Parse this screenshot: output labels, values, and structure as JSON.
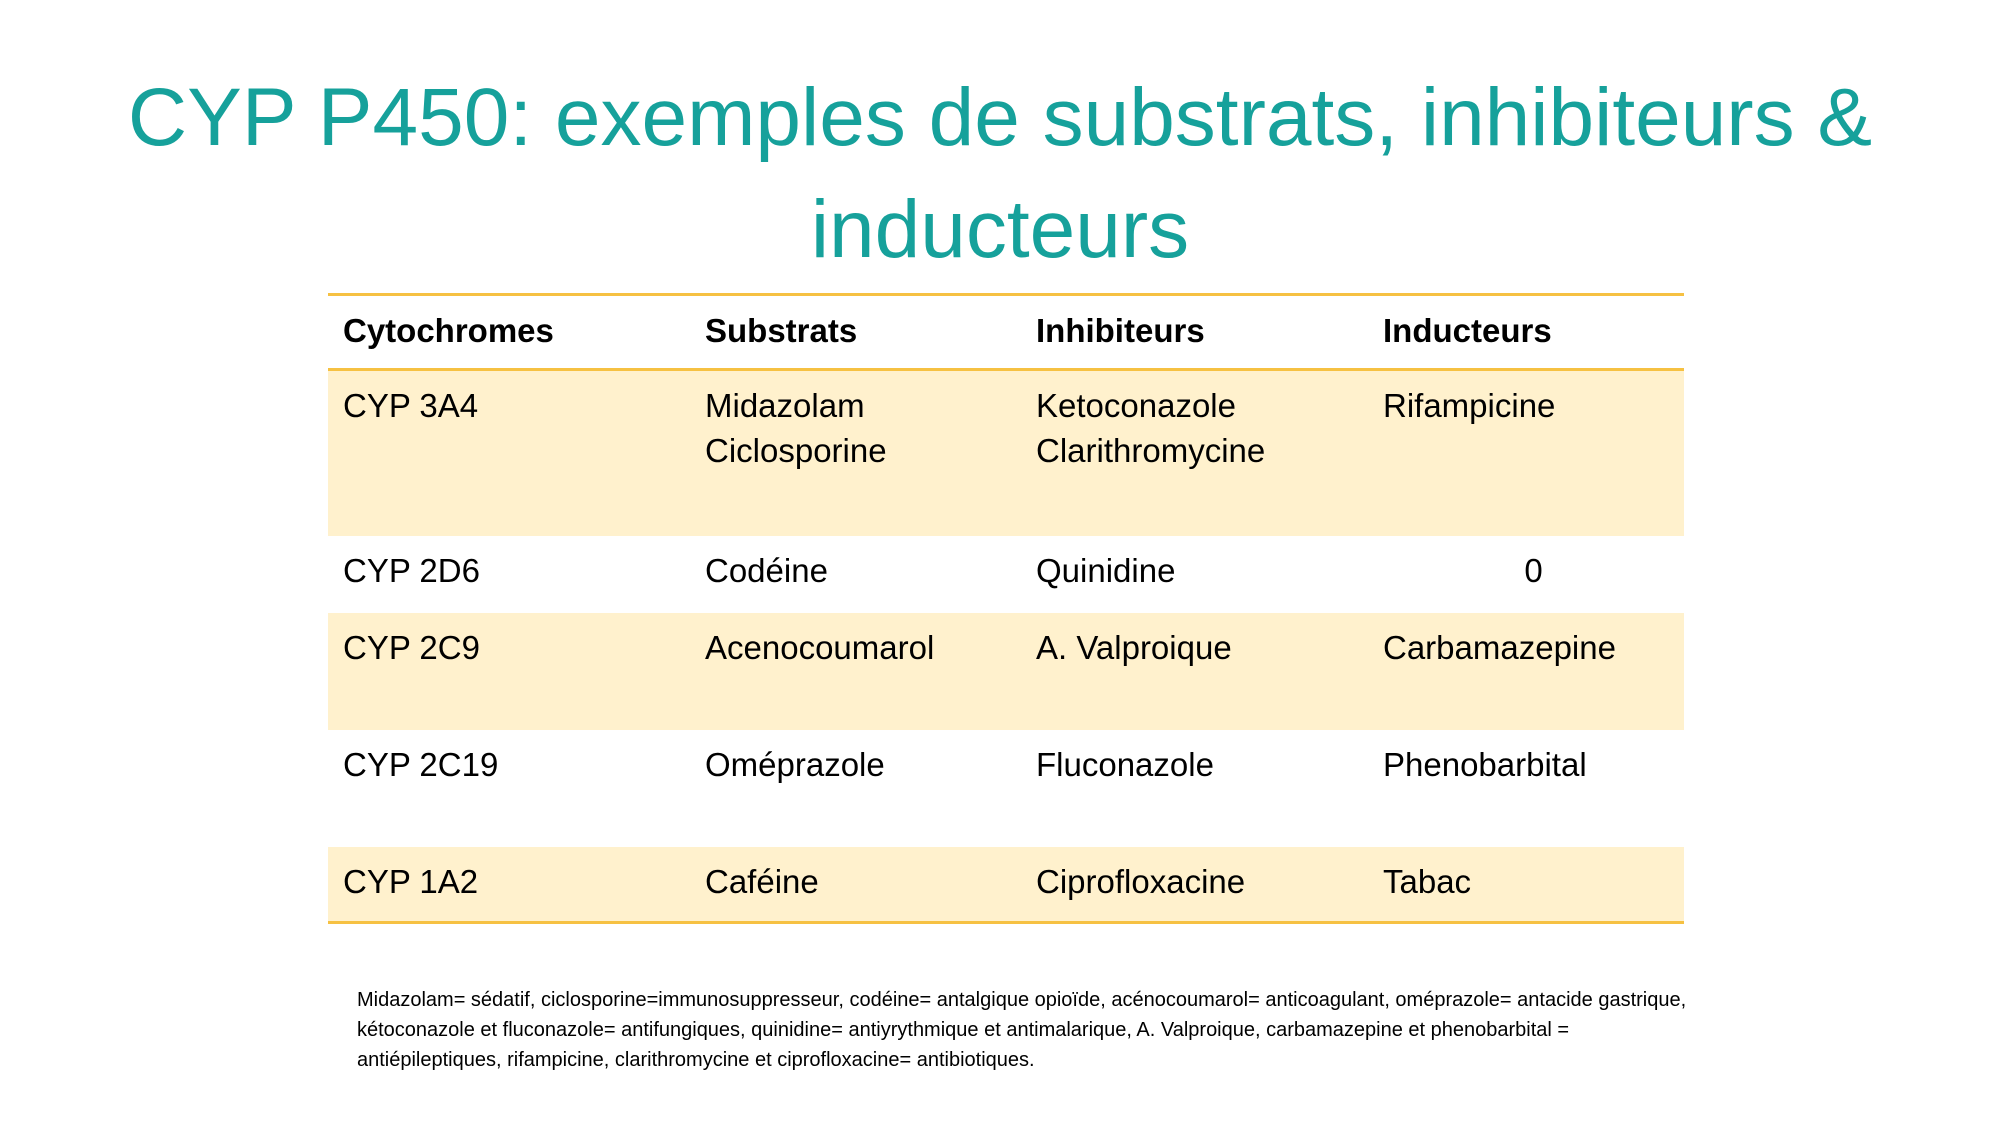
{
  "title": "CYP P450: exemples de substrats, inhibiteurs & inducteurs",
  "colors": {
    "title": "#16a19b",
    "table_rule": "#f6c142",
    "row_shade": "#fff1cd"
  },
  "table": {
    "headers": [
      "Cytochromes",
      "Substrats",
      "Inhibiteurs",
      "Inducteurs"
    ],
    "rows": [
      {
        "cytochrome": "CYP 3A4",
        "substrats": [
          "Midazolam",
          "Ciclosporine"
        ],
        "inhibiteurs": [
          "Ketoconazole",
          "Clarithromycine"
        ],
        "inducteurs": "Rifampicine"
      },
      {
        "cytochrome": "CYP 2D6",
        "substrats": [
          "Codéine"
        ],
        "inhibiteurs": [
          "Quinidine"
        ],
        "inducteurs": "0"
      },
      {
        "cytochrome": "CYP 2C9",
        "substrats": [
          "Acenocoumarol"
        ],
        "inhibiteurs": [
          "A. Valproique"
        ],
        "inducteurs": "Carbamazepine"
      },
      {
        "cytochrome": "CYP 2C19",
        "substrats": [
          "Oméprazole"
        ],
        "inhibiteurs": [
          "Fluconazole"
        ],
        "inducteurs": "Phenobarbital"
      },
      {
        "cytochrome": "CYP 1A2",
        "substrats": [
          "Caféine"
        ],
        "inhibiteurs": [
          "Ciprofloxacine"
        ],
        "inducteurs": "Tabac"
      }
    ]
  },
  "footnote": "Midazolam= sédatif, ciclosporine=immunosuppresseur, codéine= antalgique opioïde, acénocoumarol= anticoagulant, oméprazole= antacide gastrique, kétoconazole et fluconazole= antifungiques, quinidine= antiyrythmique et antimalarique, A. Valproique, carbamazepine et phenobarbital = antiépileptiques,  rifampicine, clarithromycine et ciprofloxacine= antibiotiques."
}
